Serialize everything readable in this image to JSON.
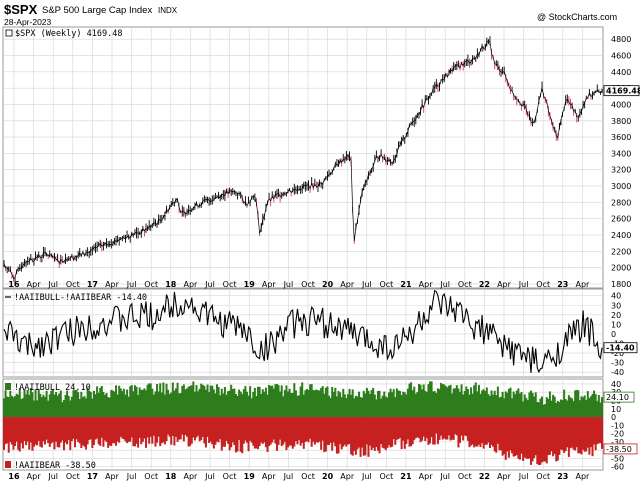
{
  "header": {
    "symbol": "$SPX",
    "name": "S&P 500 Large Cap Index",
    "exchange": "INDX",
    "date": "28-Apr-2023",
    "watermark": "@ StockCharts.com"
  },
  "colors": {
    "grid": "#d6d6d6",
    "frame": "#9a9a9a",
    "line": "#000000",
    "bull": "#2e7d1c",
    "bear": "#c62020",
    "down_candle": "#d4327a"
  },
  "chart_data": [
    {
      "type": "line",
      "title": "$SPX (Weekly) 4169.48",
      "legend_label": "$SPX (Weekly) 4169.48",
      "last_value_label": "4169.48",
      "last_value": 4169.48,
      "y_ticks": [
        1800,
        2000,
        2200,
        2400,
        2600,
        2800,
        3000,
        3200,
        3400,
        3600,
        3800,
        4000,
        4200,
        4400,
        4600,
        4800
      ],
      "ylim": [
        1750,
        4950
      ],
      "x_ticks": [
        "16",
        "Apr",
        "Jul",
        "Oct",
        "17",
        "Apr",
        "Jul",
        "Oct",
        "18",
        "Apr",
        "Jul",
        "Oct",
        "19",
        "Apr",
        "Jul",
        "Oct",
        "20",
        "Apr",
        "Jul",
        "Oct",
        "21",
        "Apr",
        "Jul",
        "Oct",
        "22",
        "Apr",
        "Jul",
        "Oct",
        "23",
        "Apr"
      ],
      "x_tick_bold": [
        "16",
        "17",
        "18",
        "19",
        "20",
        "21",
        "22",
        "23"
      ],
      "series": [
        {
          "name": "$SPX weekly close (approx.)",
          "anchors_t": [
            0.0,
            0.017,
            0.035,
            0.047,
            0.07,
            0.09,
            0.14,
            0.16,
            0.205,
            0.23,
            0.26,
            0.29,
            0.295,
            0.31,
            0.33,
            0.35,
            0.37,
            0.39,
            0.405,
            0.42,
            0.428,
            0.44,
            0.46,
            0.5,
            0.53,
            0.55,
            0.565,
            0.58,
            0.585,
            0.59,
            0.6,
            0.625,
            0.65,
            0.68,
            0.72,
            0.75,
            0.79,
            0.8,
            0.812,
            0.82,
            0.835,
            0.85,
            0.87,
            0.885,
            0.9,
            0.915,
            0.925,
            0.94,
            0.96,
            0.975,
            1.0
          ],
          "anchors_v": [
            2050,
            1880,
            2080,
            2100,
            2170,
            2080,
            2180,
            2260,
            2380,
            2440,
            2570,
            2870,
            2650,
            2720,
            2790,
            2850,
            2910,
            2930,
            2780,
            2900,
            2420,
            2800,
            2900,
            2990,
            3020,
            3200,
            3320,
            3380,
            2300,
            2550,
            2950,
            3380,
            3300,
            3750,
            4200,
            4430,
            4580,
            4700,
            4760,
            4500,
            4400,
            4150,
            3980,
            3740,
            4200,
            3800,
            3580,
            4080,
            3850,
            4100,
            4169.48
          ]
        }
      ]
    },
    {
      "type": "line",
      "title": "!AAIIBULL-!AAIIBEAR -14.40",
      "legend_label": "!AAIIBULL-!AAIIBEAR -14.40",
      "last_value_label": "-14.40",
      "last_value": -14.4,
      "y_ticks": [
        40,
        30,
        20,
        10,
        0,
        -10,
        -20,
        -30,
        -40
      ],
      "ylim": [
        -45,
        47
      ],
      "series": [
        {
          "name": "Bull-Bear spread (approx.)",
          "anchors_t": [
            0.0,
            0.04,
            0.1,
            0.15,
            0.2,
            0.25,
            0.3,
            0.35,
            0.4,
            0.43,
            0.47,
            0.5,
            0.55,
            0.6,
            0.65,
            0.68,
            0.72,
            0.76,
            0.8,
            0.83,
            0.86,
            0.9,
            0.93,
            0.97,
            1.0
          ],
          "anchors_v": [
            5,
            -15,
            0,
            10,
            15,
            20,
            35,
            15,
            5,
            -20,
            5,
            15,
            10,
            -5,
            -15,
            0,
            30,
            20,
            5,
            -10,
            -20,
            -35,
            -15,
            10,
            -14.4
          ]
        }
      ]
    },
    {
      "type": "bar",
      "legend_bull": "!AAIIBULL 24.10",
      "legend_bear": "!AAIIBEAR -38.50",
      "bull_last_label": "24.10",
      "bear_last_label": "-38.50",
      "bull_last": 24.1,
      "bear_last": -38.5,
      "y_ticks": [
        40,
        30,
        20,
        10,
        0,
        -10,
        -20,
        -30,
        -40,
        -50,
        -60
      ],
      "ylim": [
        -64,
        46
      ],
      "series": [
        {
          "name": "AAII Bullish % (approx.)",
          "anchors_t": [
            0.0,
            0.1,
            0.2,
            0.3,
            0.4,
            0.5,
            0.6,
            0.7,
            0.8,
            0.85,
            0.9,
            0.95,
            1.0
          ],
          "anchors_v": [
            28,
            26,
            32,
            36,
            30,
            34,
            27,
            36,
            34,
            28,
            22,
            27,
            24.1
          ]
        },
        {
          "name": "AAII Bearish % (approx.)",
          "anchors_t": [
            0.0,
            0.1,
            0.2,
            0.3,
            0.4,
            0.5,
            0.6,
            0.7,
            0.8,
            0.85,
            0.9,
            0.95,
            1.0
          ],
          "anchors_v": [
            -38,
            -33,
            -30,
            -28,
            -36,
            -32,
            -42,
            -27,
            -30,
            -48,
            -52,
            -42,
            -38.5
          ]
        }
      ]
    }
  ]
}
